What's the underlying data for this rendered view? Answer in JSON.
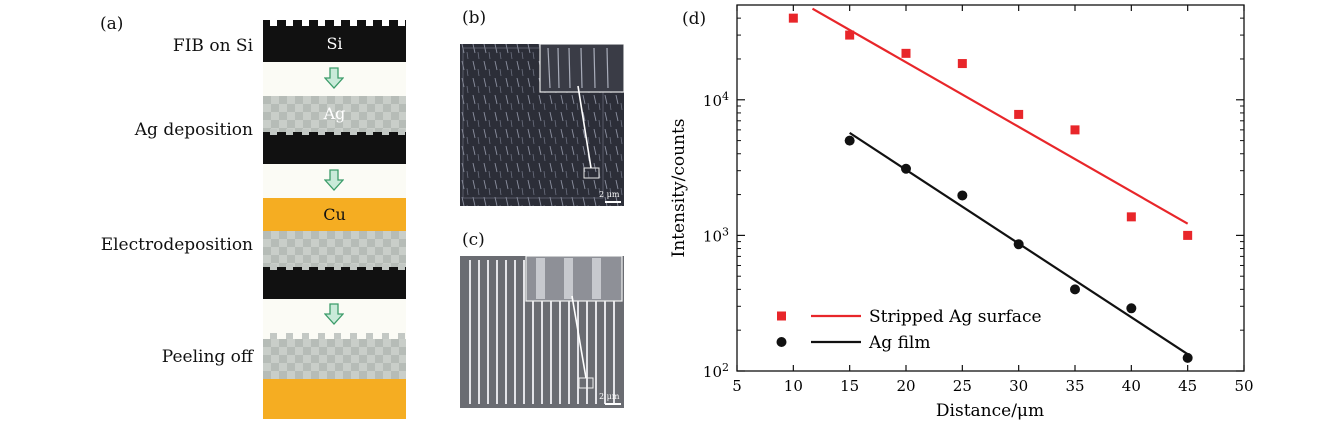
{
  "panel_a": {
    "label": "(a)",
    "steps": [
      "FIB on Si",
      "Ag deposition",
      "Electrodeposition",
      "Peeling off"
    ],
    "layers": {
      "si": "Si",
      "ag": "Ag",
      "cu": "Cu"
    }
  },
  "panel_b": {
    "label": "(b)",
    "scale": "2 μm"
  },
  "panel_c": {
    "label": "(c)",
    "scale": "2 μm"
  },
  "chart_data": {
    "panel_label": "(d)",
    "type": "scatter",
    "xlabel": "Distance/μm",
    "ylabel": "Intensity/counts",
    "xlim": [
      5,
      50
    ],
    "ylim": [
      100,
      50000
    ],
    "yscale": "log",
    "x_ticks": [
      5,
      10,
      15,
      20,
      25,
      30,
      35,
      40,
      45,
      50
    ],
    "y_ticks": [
      {
        "value": 100,
        "base": "10",
        "exp": "2"
      },
      {
        "value": 1000,
        "base": "10",
        "exp": "3"
      },
      {
        "value": 10000,
        "base": "10",
        "exp": "4"
      }
    ],
    "legend_position": "bottom-left",
    "series": [
      {
        "name": "Stripped Ag surface",
        "marker": "square",
        "color": "#e8262a",
        "x": [
          10,
          15,
          20,
          25,
          30,
          35,
          40,
          45
        ],
        "y": [
          40000,
          30000,
          22000,
          18500,
          7800,
          6000,
          1370,
          1000
        ],
        "fit": {
          "x": [
            11.7,
            45
          ],
          "y": [
            47000,
            1220
          ]
        }
      },
      {
        "name": "Ag film",
        "marker": "circle",
        "color": "#111111",
        "x": [
          15,
          20,
          25,
          30,
          35,
          40,
          45
        ],
        "y": [
          5000,
          3100,
          1970,
          860,
          400,
          290,
          125
        ],
        "fit": {
          "x": [
            15,
            45
          ],
          "y": [
            5700,
            133
          ]
        }
      }
    ]
  }
}
